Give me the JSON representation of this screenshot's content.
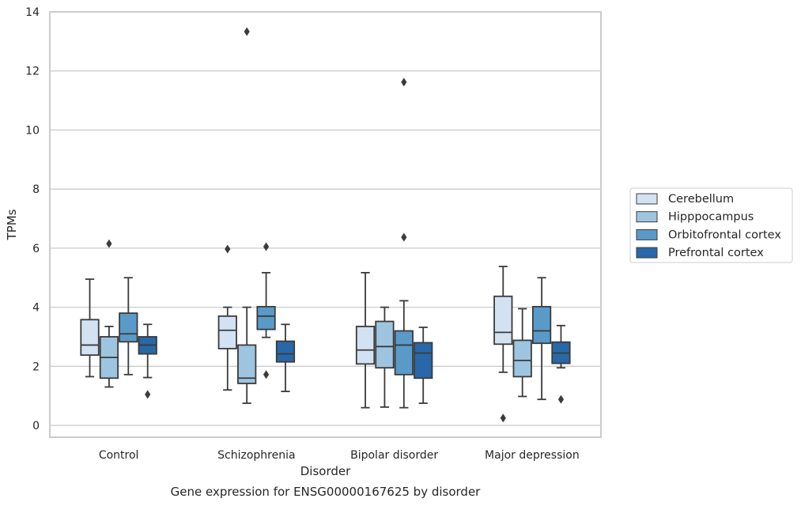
{
  "chart_data": {
    "type": "box",
    "caption": "Gene expression for ENSG00000167625 by disorder",
    "xlabel": "Disorder",
    "ylabel": "TPMs",
    "ylim": [
      -0.4,
      14
    ],
    "yticks": [
      0,
      2,
      4,
      6,
      8,
      10,
      12,
      14
    ],
    "grid": true,
    "legend_position": "right",
    "categories": [
      "Control",
      "Schizophrenia",
      "Bipolar disorder",
      "Major depression"
    ],
    "series": [
      {
        "name": "Cerebellum",
        "color": "#d3e2f2",
        "boxes": [
          {
            "whislo": 1.65,
            "q1": 2.38,
            "med": 2.72,
            "q3": 3.58,
            "whishi": 4.95,
            "fliers": []
          },
          {
            "whislo": 1.2,
            "q1": 2.6,
            "med": 3.22,
            "q3": 3.7,
            "whishi": 4.0,
            "fliers": [
              5.97
            ]
          },
          {
            "whislo": 0.6,
            "q1": 2.08,
            "med": 2.55,
            "q3": 3.35,
            "whishi": 5.17,
            "fliers": []
          },
          {
            "whislo": 1.8,
            "q1": 2.75,
            "med": 3.15,
            "q3": 4.37,
            "whishi": 5.38,
            "fliers": [
              0.25
            ]
          }
        ]
      },
      {
        "name": "Hipppocampus",
        "color": "#9dc5df",
        "boxes": [
          {
            "whislo": 1.3,
            "q1": 1.6,
            "med": 2.3,
            "q3": 3.0,
            "whishi": 3.35,
            "fliers": [
              6.15
            ]
          },
          {
            "whislo": 0.75,
            "q1": 1.42,
            "med": 1.6,
            "q3": 2.72,
            "whishi": 4.0,
            "fliers": [
              13.33
            ]
          },
          {
            "whislo": 0.62,
            "q1": 1.95,
            "med": 2.67,
            "q3": 3.52,
            "whishi": 4.0,
            "fliers": []
          },
          {
            "whislo": 0.98,
            "q1": 1.65,
            "med": 2.2,
            "q3": 2.88,
            "whishi": 3.95,
            "fliers": []
          }
        ]
      },
      {
        "name": "Orbitofrontal cortex",
        "color": "#5a9ac8",
        "boxes": [
          {
            "whislo": 1.72,
            "q1": 2.83,
            "med": 3.1,
            "q3": 3.8,
            "whishi": 5.0,
            "fliers": []
          },
          {
            "whislo": 2.98,
            "q1": 3.25,
            "med": 3.7,
            "q3": 4.02,
            "whishi": 5.17,
            "fliers": [
              6.05,
              1.72
            ]
          },
          {
            "whislo": 0.6,
            "q1": 1.72,
            "med": 2.72,
            "q3": 3.2,
            "whishi": 4.22,
            "fliers": [
              6.37,
              11.62
            ]
          },
          {
            "whislo": 0.88,
            "q1": 2.78,
            "med": 3.2,
            "q3": 4.02,
            "whishi": 5.0,
            "fliers": []
          }
        ]
      },
      {
        "name": "Prefrontal cortex",
        "color": "#2868a8",
        "boxes": [
          {
            "whislo": 1.62,
            "q1": 2.42,
            "med": 2.72,
            "q3": 3.0,
            "whishi": 3.42,
            "fliers": [
              1.05
            ]
          },
          {
            "whislo": 1.15,
            "q1": 2.15,
            "med": 2.42,
            "q3": 2.85,
            "whishi": 3.42,
            "fliers": []
          },
          {
            "whislo": 0.75,
            "q1": 1.6,
            "med": 2.45,
            "q3": 2.8,
            "whishi": 3.32,
            "fliers": []
          },
          {
            "whislo": 1.95,
            "q1": 2.1,
            "med": 2.45,
            "q3": 2.82,
            "whishi": 3.38,
            "fliers": [
              0.88
            ]
          }
        ]
      }
    ]
  }
}
